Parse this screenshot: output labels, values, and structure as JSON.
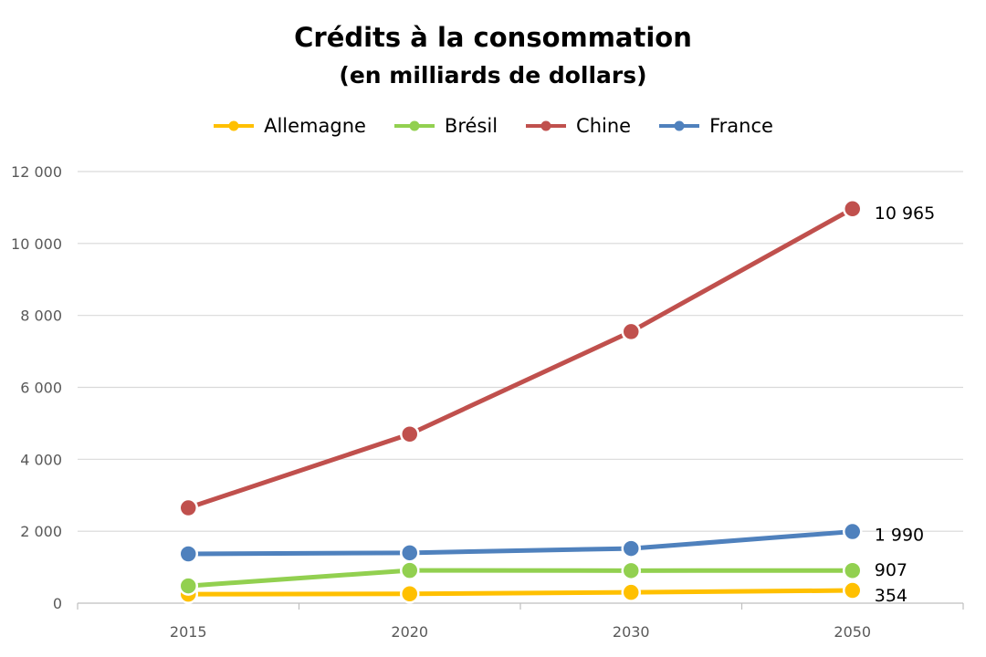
{
  "chart_data": {
    "type": "line",
    "title": "Crédits à la consommation",
    "subtitle": "(en milliards de dollars)",
    "xlabel": "",
    "ylabel": "",
    "categories": [
      "2015",
      "2020",
      "2030",
      "2050"
    ],
    "ylim": [
      0,
      12000
    ],
    "yticks": [
      0,
      2000,
      4000,
      6000,
      8000,
      10000,
      12000
    ],
    "ytick_labels": [
      "0",
      "2 000",
      "4 000",
      "6 000",
      "8 000",
      "10 000",
      "12 000"
    ],
    "grid": true,
    "legend_position": "top",
    "series": [
      {
        "name": "Allemagne",
        "color": "#FFC000",
        "values": [
          250,
          260,
          300,
          354
        ],
        "end_label": "354"
      },
      {
        "name": "Brésil",
        "color": "#92D050",
        "values": [
          480,
          910,
          905,
          907
        ],
        "end_label": "907"
      },
      {
        "name": "Chine",
        "color": "#C0504D",
        "values": [
          2650,
          4700,
          7550,
          10965
        ],
        "end_label": "10 965"
      },
      {
        "name": "France",
        "color": "#4F81BD",
        "values": [
          1370,
          1400,
          1520,
          1990
        ],
        "end_label": "1 990"
      }
    ]
  }
}
